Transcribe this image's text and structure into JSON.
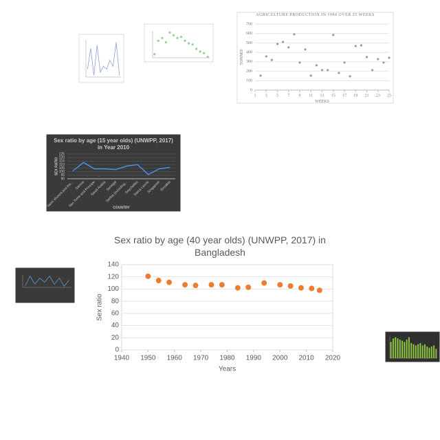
{
  "chart_data": [
    {
      "type": "line",
      "values": [
        40,
        75,
        30,
        80,
        35,
        45,
        40,
        55,
        45,
        85,
        30
      ],
      "color": "#8a9fd6"
    },
    {
      "type": "scatter",
      "values": [
        20,
        45,
        50,
        42,
        60,
        55,
        50,
        52,
        45,
        40,
        38,
        30,
        25,
        22,
        15
      ],
      "color": "#8fd18f"
    },
    {
      "type": "scatter",
      "title": "AGRICULTURE PRODUCTION IN 1994 OVER 25 WEEKS",
      "xlabel": "WEEKS",
      "ylabel": "TONNES",
      "x": [
        2,
        3,
        4,
        5,
        6,
        7,
        8,
        9,
        10,
        11,
        12,
        13,
        14,
        15,
        16,
        17,
        18,
        19,
        20,
        21,
        22,
        23,
        24,
        25
      ],
      "values": [
        153,
        357,
        320,
        489,
        511,
        453,
        591,
        292,
        430,
        153,
        263,
        212,
        212,
        584,
        182,
        292,
        146,
        467,
        474,
        350,
        212,
        328,
        292,
        343
      ],
      "color": "#9a9a9a",
      "xlim": [
        1,
        25
      ],
      "ylim": [
        0,
        700
      ],
      "xticks": [
        1,
        3,
        5,
        7,
        9,
        11,
        13,
        15,
        17,
        19,
        21,
        23,
        25
      ],
      "yticks": [
        0,
        100,
        200,
        300,
        400,
        500,
        600,
        700
      ],
      "grid": true
    },
    {
      "type": "line",
      "title": "Sex ratio by age (15 year olds) (UNWPP, 2017) in Year 2010",
      "xlabel": "COUNTRY",
      "ylabel": "SEX RATIO",
      "categories": [
        "Saint Vincent and the...",
        "Samoa",
        "Sao Tome and Principe",
        "Saudi Arabia",
        "Senegal",
        "Serbia (including...",
        "Seychelles",
        "Sierra Leone",
        "Singapore",
        "Slovakia"
      ],
      "values": [
        101,
        113,
        104,
        104,
        103,
        108,
        110,
        96,
        104,
        106
      ],
      "color": "#4a90e2",
      "ylim": [
        90,
        125
      ],
      "yticks": [
        90,
        95,
        100,
        105,
        110,
        115,
        120,
        125
      ],
      "grid": true
    },
    {
      "type": "line",
      "values": [
        30,
        55,
        35,
        50,
        40,
        55,
        35,
        50,
        30,
        45
      ],
      "color": "#5b9bd5"
    },
    {
      "type": "bar",
      "values": [
        14,
        17,
        18,
        17,
        16,
        15,
        14,
        16,
        18,
        13,
        12,
        11,
        12,
        13,
        11,
        12,
        10,
        9,
        10,
        11,
        8
      ],
      "color": "#8cc63f"
    },
    {
      "type": "scatter",
      "title": "Sex ratio by age (40 year olds) (UNWPP, 2017) in Bangladesh",
      "xlabel": "Years",
      "ylabel": "Sex ratio",
      "x": [
        1950,
        1954,
        1958,
        1964,
        1968,
        1974,
        1978,
        1984,
        1988,
        1994,
        2000,
        2004,
        2008,
        2012,
        2015
      ],
      "values": [
        121,
        114,
        111,
        107,
        106,
        107,
        107,
        102,
        103,
        110,
        107,
        105,
        102,
        101,
        98
      ],
      "color": "#ed7d31",
      "xlim": [
        1940,
        2020
      ],
      "ylim": [
        0,
        140
      ],
      "xticks": [
        1940,
        1950,
        1960,
        1970,
        1980,
        1990,
        2000,
        2010,
        2020
      ],
      "yticks": [
        0,
        20,
        40,
        60,
        80,
        100,
        120,
        140
      ],
      "grid": true
    }
  ]
}
